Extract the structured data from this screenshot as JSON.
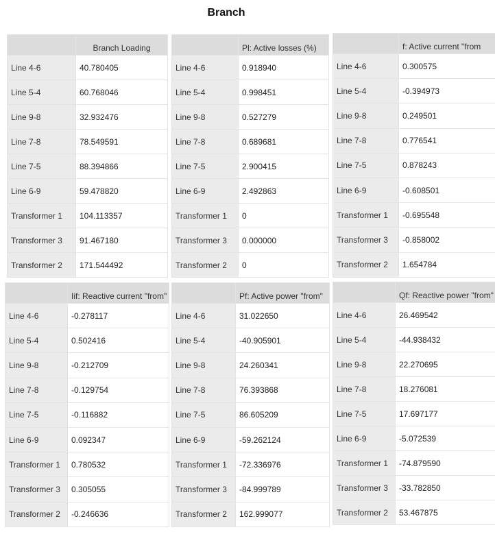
{
  "page": {
    "title": "Branch"
  },
  "tables": [
    {
      "id": "t1",
      "header": "Branch Loading",
      "rows": [
        {
          "label": "Line 4-6",
          "value": "40.780405"
        },
        {
          "label": "Line 5-4",
          "value": "60.768046"
        },
        {
          "label": "Line 9-8",
          "value": "32.932476"
        },
        {
          "label": "Line 7-8",
          "value": "78.549591"
        },
        {
          "label": "Line 7-5",
          "value": "88.394866"
        },
        {
          "label": "Line 6-9",
          "value": "59.478820"
        },
        {
          "label": "Transformer 1",
          "value": "104.113357"
        },
        {
          "label": "Transformer 3",
          "value": "91.467180"
        },
        {
          "label": "Transformer 2",
          "value": "171.544492"
        }
      ]
    },
    {
      "id": "t2",
      "header": "Pl: Active losses (%)",
      "rows": [
        {
          "label": "Line 4-6",
          "value": "0.918940"
        },
        {
          "label": "Line 5-4",
          "value": "0.998451"
        },
        {
          "label": "Line 9-8",
          "value": "0.527279"
        },
        {
          "label": "Line 7-8",
          "value": "0.689681"
        },
        {
          "label": "Line 7-5",
          "value": "2.900415"
        },
        {
          "label": "Line 6-9",
          "value": "2.492863"
        },
        {
          "label": "Transformer 1",
          "value": "0"
        },
        {
          "label": "Transformer 3",
          "value": "0.000000"
        },
        {
          "label": "Transformer 2",
          "value": "0"
        }
      ]
    },
    {
      "id": "t3",
      "header": "f: Active current \"from",
      "rows": [
        {
          "label": "Line 4-6",
          "value": "0.300575"
        },
        {
          "label": "Line 5-4",
          "value": "-0.394973"
        },
        {
          "label": "Line 9-8",
          "value": "0.249501"
        },
        {
          "label": "Line 7-8",
          "value": "0.776541"
        },
        {
          "label": "Line 7-5",
          "value": "0.878243"
        },
        {
          "label": "Line 6-9",
          "value": "-0.608501"
        },
        {
          "label": "Transformer 1",
          "value": "-0.695548"
        },
        {
          "label": "Transformer 3",
          "value": "-0.858002"
        },
        {
          "label": "Transformer 2",
          "value": "1.654784"
        }
      ]
    },
    {
      "id": "t4",
      "header": "Iif: Reactive current \"from\"",
      "rows": [
        {
          "label": "Line 4-6",
          "value": "-0.278117"
        },
        {
          "label": "Line 5-4",
          "value": "0.502416"
        },
        {
          "label": "Line 9-8",
          "value": "-0.212709"
        },
        {
          "label": "Line 7-8",
          "value": "-0.129754"
        },
        {
          "label": "Line 7-5",
          "value": "-0.116882"
        },
        {
          "label": "Line 6-9",
          "value": "0.092347"
        },
        {
          "label": "Transformer 1",
          "value": "0.780532"
        },
        {
          "label": "Transformer 3",
          "value": "0.305055"
        },
        {
          "label": "Transformer 2",
          "value": "-0.246636"
        }
      ]
    },
    {
      "id": "t5",
      "header": "Pf: Active power \"from\"",
      "rows": [
        {
          "label": "Line 4-6",
          "value": "31.022650"
        },
        {
          "label": "Line 5-4",
          "value": "-40.905901"
        },
        {
          "label": "Line 9-8",
          "value": "24.260341"
        },
        {
          "label": "Line 7-8",
          "value": "76.393868"
        },
        {
          "label": "Line 7-5",
          "value": "86.605209"
        },
        {
          "label": "Line 6-9",
          "value": "-59.262124"
        },
        {
          "label": "Transformer 1",
          "value": "-72.336976"
        },
        {
          "label": "Transformer 3",
          "value": "-84.999789"
        },
        {
          "label": "Transformer 2",
          "value": "162.999077"
        }
      ]
    },
    {
      "id": "t6",
      "header": "Qf: Reactive power \"from\"",
      "rows": [
        {
          "label": "Line 4-6",
          "value": "26.469542"
        },
        {
          "label": "Line 5-4",
          "value": "-44.938432"
        },
        {
          "label": "Line 9-8",
          "value": "22.270695"
        },
        {
          "label": "Line 7-8",
          "value": "18.276081"
        },
        {
          "label": "Line 7-5",
          "value": "17.697177"
        },
        {
          "label": "Line 6-9",
          "value": "-5.072539"
        },
        {
          "label": "Transformer 1",
          "value": "-74.879590"
        },
        {
          "label": "Transformer 3",
          "value": "-33.782850"
        },
        {
          "label": "Transformer 2",
          "value": "53.467875"
        }
      ]
    }
  ]
}
